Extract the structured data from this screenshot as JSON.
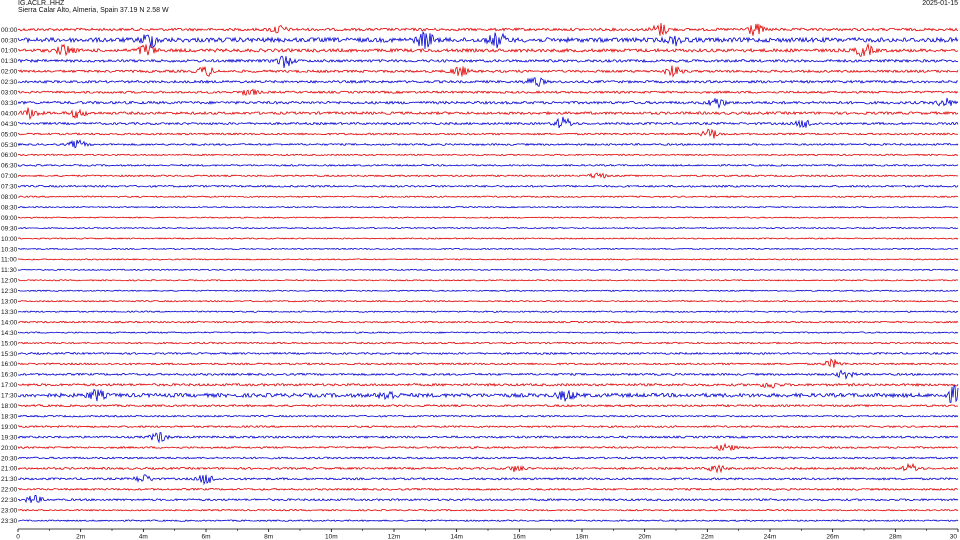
{
  "header": {
    "station_code": "IG.ACLR..HHZ",
    "location": "Sierra Calar Alto, Almeria, Spain  37.19 N 2.58 W",
    "date": "2025-01-15"
  },
  "chart_data": {
    "type": "line",
    "title": "IG.ACLR..HHZ",
    "subtitle": "Sierra Calar Alto, Almeria, Spain  37.19 N 2.58 W",
    "xlabel": "",
    "ylabel": "",
    "xlim": [
      0,
      30
    ],
    "x_unit": "m",
    "x_ticks": [
      "0",
      "2m",
      "4m",
      "6m",
      "8m",
      "10m",
      "12m",
      "14m",
      "16m",
      "18m",
      "20m",
      "22m",
      "24m",
      "26m",
      "28m",
      "30"
    ],
    "row_labels": [
      "00:00",
      "00:30",
      "01:00",
      "01:30",
      "02:00",
      "02:30",
      "03:00",
      "03:30",
      "04:00",
      "04:30",
      "05:00",
      "05:30",
      "06:00",
      "06:30",
      "07:00",
      "07:30",
      "08:00",
      "08:30",
      "09:00",
      "09:30",
      "10:00",
      "10:30",
      "11:00",
      "11:30",
      "12:00",
      "12:30",
      "13:00",
      "13:30",
      "14:00",
      "14:30",
      "15:00",
      "15:30",
      "16:00",
      "16:30",
      "17:00",
      "17:30",
      "18:00",
      "18:30",
      "19:00",
      "19:30",
      "20:00",
      "20:30",
      "21:00",
      "21:30",
      "22:00",
      "22:30",
      "23:00",
      "23:30"
    ],
    "trace_colors": [
      "#e00000",
      "#0000d0"
    ],
    "grid": false,
    "noise_amplitude": [
      1.3,
      2.2,
      1.6,
      1.3,
      1.2,
      1.2,
      1.1,
      1.3,
      1.3,
      1.1,
      0.9,
      0.9,
      0.7,
      0.8,
      0.8,
      0.9,
      0.7,
      0.6,
      0.6,
      0.6,
      0.6,
      0.6,
      0.6,
      0.6,
      0.6,
      0.6,
      0.7,
      0.7,
      0.8,
      0.7,
      0.8,
      0.9,
      0.9,
      1.0,
      1.2,
      1.9,
      1.0,
      0.8,
      0.9,
      1.0,
      0.9,
      0.9,
      1.0,
      1.0,
      0.9,
      1.0,
      0.7,
      0.7
    ],
    "bursts": [
      {
        "row": 0,
        "minute": 8.3,
        "amplitude": 4
      },
      {
        "row": 0,
        "minute": 20.5,
        "amplitude": 6
      },
      {
        "row": 0,
        "minute": 23.5,
        "amplitude": 6
      },
      {
        "row": 1,
        "minute": 4.2,
        "amplitude": 7
      },
      {
        "row": 1,
        "minute": 13.0,
        "amplitude": 8
      },
      {
        "row": 1,
        "minute": 15.3,
        "amplitude": 7
      },
      {
        "row": 1,
        "minute": 21.0,
        "amplitude": 4
      },
      {
        "row": 2,
        "minute": 1.5,
        "amplitude": 5
      },
      {
        "row": 2,
        "minute": 4.1,
        "amplitude": 6
      },
      {
        "row": 2,
        "minute": 27.0,
        "amplitude": 6
      },
      {
        "row": 3,
        "minute": 8.5,
        "amplitude": 6
      },
      {
        "row": 4,
        "minute": 6.0,
        "amplitude": 5
      },
      {
        "row": 4,
        "minute": 14.1,
        "amplitude": 5
      },
      {
        "row": 4,
        "minute": 20.9,
        "amplitude": 5
      },
      {
        "row": 5,
        "minute": 16.5,
        "amplitude": 5
      },
      {
        "row": 6,
        "minute": 7.4,
        "amplitude": 3
      },
      {
        "row": 7,
        "minute": 22.3,
        "amplitude": 5
      },
      {
        "row": 7,
        "minute": 29.6,
        "amplitude": 4
      },
      {
        "row": 8,
        "minute": 0.4,
        "amplitude": 5
      },
      {
        "row": 8,
        "minute": 1.9,
        "amplitude": 4
      },
      {
        "row": 9,
        "minute": 17.4,
        "amplitude": 6
      },
      {
        "row": 9,
        "minute": 25.1,
        "amplitude": 4
      },
      {
        "row": 10,
        "minute": 22.1,
        "amplitude": 5
      },
      {
        "row": 11,
        "minute": 1.9,
        "amplitude": 4
      },
      {
        "row": 14,
        "minute": 18.5,
        "amplitude": 3
      },
      {
        "row": 32,
        "minute": 26.0,
        "amplitude": 4
      },
      {
        "row": 33,
        "minute": 26.4,
        "amplitude": 4
      },
      {
        "row": 34,
        "minute": 24.0,
        "amplitude": 3
      },
      {
        "row": 35,
        "minute": 2.5,
        "amplitude": 5
      },
      {
        "row": 35,
        "minute": 11.8,
        "amplitude": 5
      },
      {
        "row": 35,
        "minute": 17.5,
        "amplitude": 5
      },
      {
        "row": 35,
        "minute": 29.9,
        "amplitude": 8
      },
      {
        "row": 39,
        "minute": 4.5,
        "amplitude": 5
      },
      {
        "row": 40,
        "minute": 22.6,
        "amplitude": 4
      },
      {
        "row": 42,
        "minute": 15.9,
        "amplitude": 3
      },
      {
        "row": 42,
        "minute": 22.3,
        "amplitude": 4
      },
      {
        "row": 42,
        "minute": 28.5,
        "amplitude": 4
      },
      {
        "row": 43,
        "minute": 4.0,
        "amplitude": 4
      },
      {
        "row": 43,
        "minute": 6.0,
        "amplitude": 5
      },
      {
        "row": 45,
        "minute": 0.5,
        "amplitude": 4
      }
    ]
  }
}
